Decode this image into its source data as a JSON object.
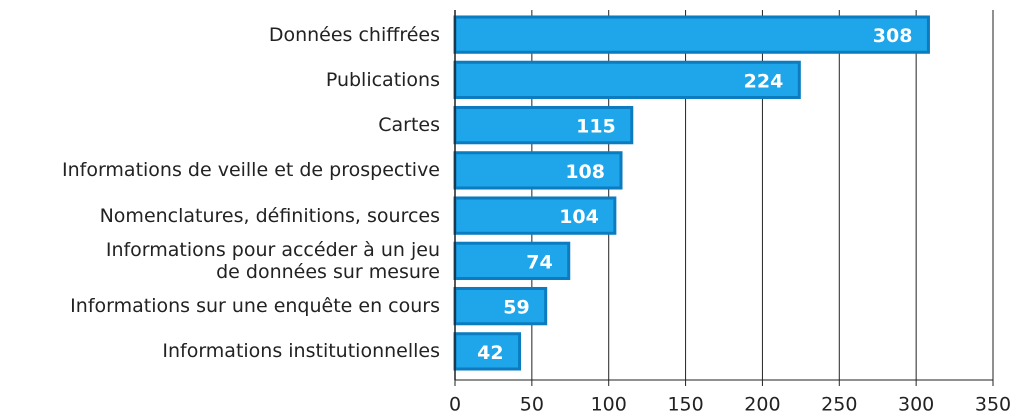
{
  "chart_data": {
    "type": "hbar",
    "categories": [
      "Données chiffrées",
      "Publications",
      "Cartes",
      "Informations de veille et de prospective",
      "Nomenclatures, définitions, sources",
      "Informations pour accéder à un jeu\nde données sur mesure",
      "Informations sur une enquête en cours",
      "Informations institutionnelles"
    ],
    "values": [
      308,
      224,
      115,
      108,
      104,
      74,
      59,
      42
    ],
    "color": "#1ea5ea",
    "edge_color": "#0b7cc0",
    "xlim": [
      0,
      350
    ],
    "xticks": [
      0,
      50,
      100,
      150,
      200,
      250,
      300,
      350
    ],
    "grid": true
  }
}
